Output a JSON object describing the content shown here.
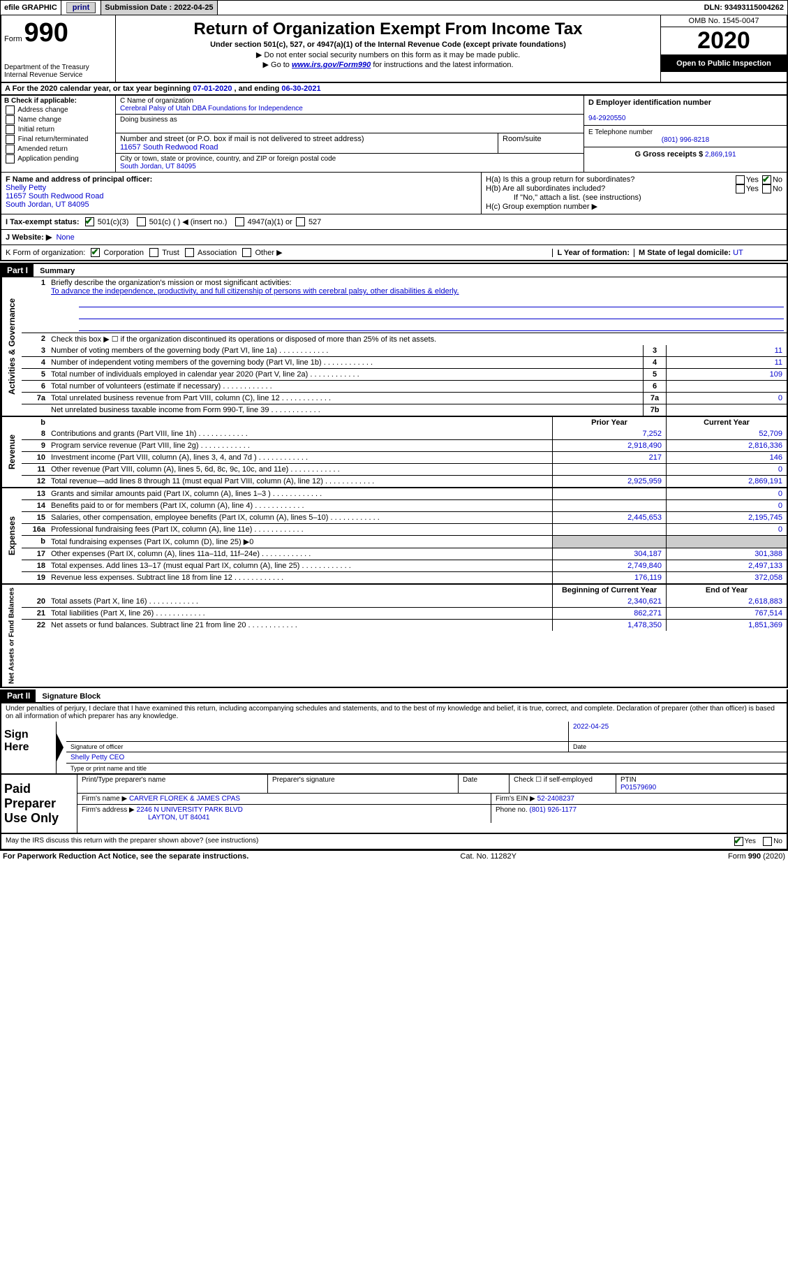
{
  "top_bar": {
    "efile_label": "efile GRAPHIC",
    "print_btn": "print",
    "submission_label": "Submission Date :",
    "submission_date": "2022-04-25",
    "dln_label": "DLN:",
    "dln": "93493115004262"
  },
  "header": {
    "form_prefix": "Form",
    "form_number": "990",
    "dept": "Department of the Treasury",
    "irs": "Internal Revenue Service",
    "title": "Return of Organization Exempt From Income Tax",
    "subtitle": "Under section 501(c), 527, or 4947(a)(1) of the Internal Revenue Code (except private foundations)",
    "instr1": "▶ Do not enter social security numbers on this form as it may be made public.",
    "instr2_pre": "▶ Go to ",
    "instr2_link": "www.irs.gov/Form990",
    "instr2_post": " for instructions and the latest information.",
    "omb": "OMB No. 1545-0047",
    "year": "2020",
    "inspection": "Open to Public Inspection"
  },
  "line_a": {
    "text_pre": "A For the 2020 calendar year, or tax year beginning ",
    "begin": "07-01-2020",
    "text_mid": " , and ending ",
    "end": "06-30-2021"
  },
  "section_b": {
    "label": "B Check if applicable:",
    "opts": [
      "Address change",
      "Name change",
      "Initial return",
      "Final return/terminated",
      "Amended return",
      "Application pending"
    ],
    "c_label": "C Name of organization",
    "org_name": "Cerebral Palsy of Utah DBA Foundations for Independence",
    "dba_label": "Doing business as",
    "street_label": "Number and street (or P.O. box if mail is not delivered to street address)",
    "suite_label": "Room/suite",
    "street": "11657 South Redwood Road",
    "city_label": "City or town, state or province, country, and ZIP or foreign postal code",
    "city": "South Jordan, UT  84095",
    "d_label": "D Employer identification number",
    "ein": "94-2920550",
    "e_label": "E Telephone number",
    "phone": "(801) 996-8218",
    "g_label": "G Gross receipts $",
    "gross": "2,869,191"
  },
  "row_f": {
    "f_label": "F Name and address of principal officer:",
    "name": "Shelly Petty",
    "addr1": "11657 South Redwood Road",
    "addr2": "South Jordan, UT  84095",
    "ha_label": "H(a)  Is this a group return for subordinates?",
    "hb_label": "H(b)  Are all subordinates included?",
    "h_note": "If \"No,\" attach a list. (see instructions)",
    "hc_label": "H(c)  Group exemption number ▶",
    "yes": "Yes",
    "no": "No"
  },
  "row_i": {
    "label": "I  Tax-exempt status:",
    "opt1": "501(c)(3)",
    "opt2": "501(c) (  ) ◀ (insert no.)",
    "opt3": "4947(a)(1) or",
    "opt4": "527"
  },
  "row_j": {
    "label": "J  Website: ▶",
    "value": "None"
  },
  "row_k": {
    "label": "K Form of organization:",
    "corp": "Corporation",
    "trust": "Trust",
    "assoc": "Association",
    "other": "Other ▶",
    "l_label": "L Year of formation:",
    "m_label": "M State of legal domicile:",
    "m_value": "UT"
  },
  "part1": {
    "header": "Part I",
    "title": "Summary",
    "line1": "Briefly describe the organization's mission or most significant activities:",
    "mission": "To advance the independence, productivity, and full citizenship of persons with cerebral palsy, other disabilities & elderly.",
    "gov_label": "Activities & Governance",
    "rev_label": "Revenue",
    "exp_label": "Expenses",
    "net_label": "Net Assets or Fund Balances",
    "line2": "Check this box ▶ ☐  if the organization discontinued its operations or disposed of more than 25% of its net assets.",
    "prior_year": "Prior Year",
    "current_year": "Current Year",
    "begin_year": "Beginning of Current Year",
    "end_year": "End of Year",
    "lines_gov": [
      {
        "n": "3",
        "d": "Number of voting members of the governing body (Part VI, line 1a)",
        "b": "3",
        "v": "11"
      },
      {
        "n": "4",
        "d": "Number of independent voting members of the governing body (Part VI, line 1b)",
        "b": "4",
        "v": "11"
      },
      {
        "n": "5",
        "d": "Total number of individuals employed in calendar year 2020 (Part V, line 2a)",
        "b": "5",
        "v": "109"
      },
      {
        "n": "6",
        "d": "Total number of volunteers (estimate if necessary)",
        "b": "6",
        "v": ""
      },
      {
        "n": "7a",
        "d": "Total unrelated business revenue from Part VIII, column (C), line 12",
        "b": "7a",
        "v": "0"
      },
      {
        "n": "",
        "d": "Net unrelated business taxable income from Form 990-T, line 39",
        "b": "7b",
        "v": ""
      }
    ],
    "lines_rev": [
      {
        "n": "8",
        "d": "Contributions and grants (Part VIII, line 1h)",
        "p": "7,252",
        "c": "52,709"
      },
      {
        "n": "9",
        "d": "Program service revenue (Part VIII, line 2g)",
        "p": "2,918,490",
        "c": "2,816,336"
      },
      {
        "n": "10",
        "d": "Investment income (Part VIII, column (A), lines 3, 4, and 7d )",
        "p": "217",
        "c": "146"
      },
      {
        "n": "11",
        "d": "Other revenue (Part VIII, column (A), lines 5, 6d, 8c, 9c, 10c, and 11e)",
        "p": "",
        "c": "0"
      },
      {
        "n": "12",
        "d": "Total revenue—add lines 8 through 11 (must equal Part VIII, column (A), line 12)",
        "p": "2,925,959",
        "c": "2,869,191"
      }
    ],
    "lines_exp": [
      {
        "n": "13",
        "d": "Grants and similar amounts paid (Part IX, column (A), lines 1–3 )",
        "p": "",
        "c": "0"
      },
      {
        "n": "14",
        "d": "Benefits paid to or for members (Part IX, column (A), line 4)",
        "p": "",
        "c": "0"
      },
      {
        "n": "15",
        "d": "Salaries, other compensation, employee benefits (Part IX, column (A), lines 5–10)",
        "p": "2,445,653",
        "c": "2,195,745"
      },
      {
        "n": "16a",
        "d": "Professional fundraising fees (Part IX, column (A), line 11e)",
        "p": "",
        "c": "0"
      },
      {
        "n": "b",
        "d": "Total fundraising expenses (Part IX, column (D), line 25) ▶0",
        "p": null,
        "c": null
      },
      {
        "n": "17",
        "d": "Other expenses (Part IX, column (A), lines 11a–11d, 11f–24e)",
        "p": "304,187",
        "c": "301,388"
      },
      {
        "n": "18",
        "d": "Total expenses. Add lines 13–17 (must equal Part IX, column (A), line 25)",
        "p": "2,749,840",
        "c": "2,497,133"
      },
      {
        "n": "19",
        "d": "Revenue less expenses. Subtract line 18 from line 12",
        "p": "176,119",
        "c": "372,058"
      }
    ],
    "lines_net": [
      {
        "n": "20",
        "d": "Total assets (Part X, line 16)",
        "p": "2,340,621",
        "c": "2,618,883"
      },
      {
        "n": "21",
        "d": "Total liabilities (Part X, line 26)",
        "p": "862,271",
        "c": "767,514"
      },
      {
        "n": "22",
        "d": "Net assets or fund balances. Subtract line 21 from line 20",
        "p": "1,478,350",
        "c": "1,851,369"
      }
    ]
  },
  "part2": {
    "header": "Part II",
    "title": "Signature Block",
    "declaration": "Under penalties of perjury, I declare that I have examined this return, including accompanying schedules and statements, and to the best of my knowledge and belief, it is true, correct, and complete. Declaration of preparer (other than officer) is based on all information of which preparer has any knowledge.",
    "sign_here": "Sign Here",
    "sig_officer": "Signature of officer",
    "date_label": "Date",
    "sig_date": "2022-04-25",
    "officer_name": "Shelly Petty CEO",
    "type_name": "Type or print name and title",
    "paid_prep": "Paid Preparer Use Only",
    "print_name": "Print/Type preparer's name",
    "prep_sig": "Preparer's signature",
    "check_self": "Check ☐  if self-employed",
    "ptin_label": "PTIN",
    "ptin": "P01579690",
    "firm_name_label": "Firm's name   ▶",
    "firm_name": "CARVER FLOREK & JAMES CPAS",
    "firm_ein_label": "Firm's EIN ▶",
    "firm_ein": "52-2408237",
    "firm_addr_label": "Firm's address ▶",
    "firm_addr1": "2246 N UNIVERSITY PARK BLVD",
    "firm_addr2": "LAYTON, UT  84041",
    "phone_label": "Phone no.",
    "phone": "(801) 926-1177",
    "discuss": "May the IRS discuss this return with the preparer shown above? (see instructions)"
  },
  "footer": {
    "paperwork": "For Paperwork Reduction Act Notice, see the separate instructions.",
    "cat": "Cat. No. 11282Y",
    "form": "Form 990 (2020)"
  }
}
